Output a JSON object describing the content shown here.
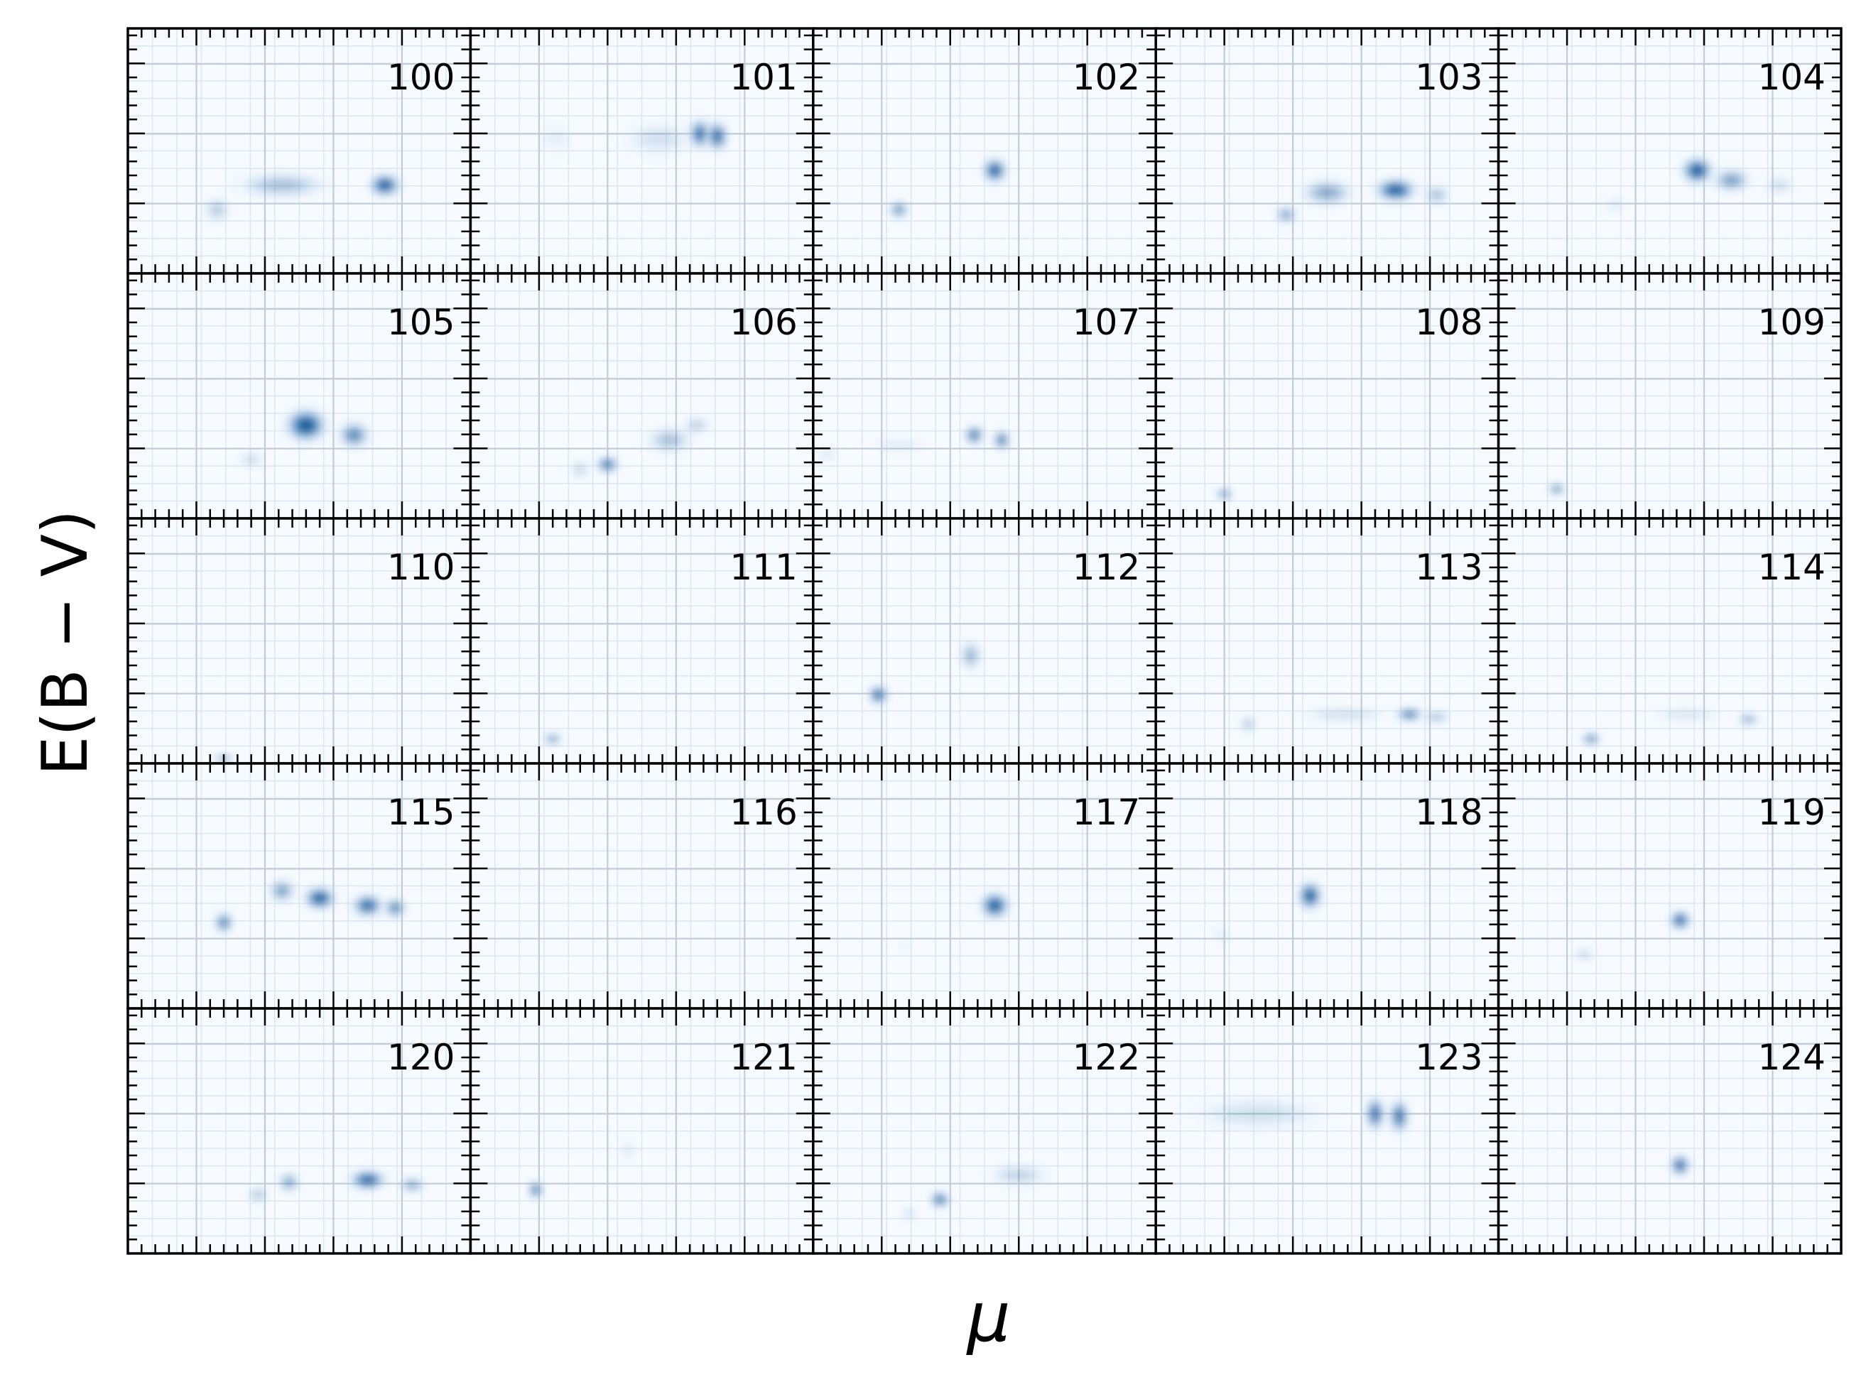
{
  "chart_data": {
    "type": "heatmap",
    "layout": {
      "rows": 5,
      "cols": 5
    },
    "xlabel": "μ",
    "ylabel": "E(B − V)",
    "tick_labels_shown": false,
    "grid": true,
    "colormap": "Blues",
    "colors": {
      "dark": "#08306b",
      "mid": "#2171b5",
      "light": "#c6dbef",
      "background": "#f7fbff"
    },
    "panels": [
      {
        "label": "100",
        "blobs": [
          [
            0.26,
            0.26,
            0.05,
            0.07,
            0.3
          ],
          [
            0.45,
            0.36,
            0.18,
            0.07,
            0.35
          ],
          [
            0.75,
            0.36,
            0.06,
            0.06,
            1.0
          ]
        ]
      },
      {
        "label": "101",
        "blobs": [
          [
            0.25,
            0.55,
            0.08,
            0.08,
            0.08
          ],
          [
            0.55,
            0.55,
            0.15,
            0.1,
            0.15
          ],
          [
            0.67,
            0.57,
            0.04,
            0.08,
            0.9
          ],
          [
            0.72,
            0.56,
            0.04,
            0.08,
            0.9
          ]
        ]
      },
      {
        "label": "102",
        "blobs": [
          [
            0.25,
            0.26,
            0.035,
            0.045,
            0.75
          ],
          [
            0.53,
            0.42,
            0.045,
            0.065,
            1.0
          ]
        ]
      },
      {
        "label": "103",
        "blobs": [
          [
            0.38,
            0.24,
            0.04,
            0.045,
            0.6
          ],
          [
            0.5,
            0.33,
            0.1,
            0.07,
            0.5
          ],
          [
            0.7,
            0.34,
            0.08,
            0.06,
            1.0
          ],
          [
            0.82,
            0.32,
            0.05,
            0.05,
            0.4
          ]
        ]
      },
      {
        "label": "104",
        "blobs": [
          [
            0.34,
            0.28,
            0.04,
            0.04,
            0.15
          ],
          [
            0.58,
            0.42,
            0.06,
            0.07,
            1.0
          ],
          [
            0.68,
            0.38,
            0.07,
            0.06,
            0.6
          ],
          [
            0.82,
            0.36,
            0.06,
            0.05,
            0.2
          ]
        ]
      },
      {
        "label": "105",
        "blobs": [
          [
            0.36,
            0.24,
            0.05,
            0.04,
            0.25
          ],
          [
            0.52,
            0.38,
            0.08,
            0.09,
            1.0
          ],
          [
            0.66,
            0.34,
            0.06,
            0.07,
            0.7
          ]
        ]
      },
      {
        "label": "106",
        "blobs": [
          [
            0.32,
            0.2,
            0.04,
            0.05,
            0.25
          ],
          [
            0.4,
            0.22,
            0.04,
            0.04,
            1.0
          ],
          [
            0.58,
            0.32,
            0.09,
            0.07,
            0.35
          ],
          [
            0.66,
            0.38,
            0.05,
            0.04,
            0.35
          ]
        ]
      },
      {
        "label": "107",
        "blobs": [
          [
            0.04,
            0.26,
            0.04,
            0.04,
            0.15
          ],
          [
            0.25,
            0.3,
            0.12,
            0.04,
            0.12
          ],
          [
            0.47,
            0.34,
            0.035,
            0.05,
            0.9
          ],
          [
            0.55,
            0.32,
            0.03,
            0.05,
            0.9
          ]
        ]
      },
      {
        "label": "108",
        "blobs": [
          [
            0.2,
            0.1,
            0.035,
            0.02,
            1.0
          ]
        ]
      },
      {
        "label": "109",
        "blobs": [
          [
            0.17,
            0.12,
            0.03,
            0.025,
            1.0
          ]
        ]
      },
      {
        "label": "110",
        "blobs": [
          [
            0.28,
            0.02,
            0.04,
            0.015,
            1.0
          ]
        ]
      },
      {
        "label": "111",
        "blobs": [
          [
            0.24,
            0.1,
            0.035,
            0.02,
            1.0
          ]
        ]
      },
      {
        "label": "112",
        "blobs": [
          [
            0.19,
            0.28,
            0.035,
            0.05,
            1.0
          ],
          [
            0.46,
            0.44,
            0.04,
            0.08,
            0.45
          ]
        ]
      },
      {
        "label": "113",
        "blobs": [
          [
            0.27,
            0.16,
            0.03,
            0.04,
            0.4
          ],
          [
            0.55,
            0.2,
            0.18,
            0.04,
            0.2
          ],
          [
            0.74,
            0.2,
            0.05,
            0.03,
            1.0
          ],
          [
            0.82,
            0.19,
            0.05,
            0.03,
            0.45
          ]
        ]
      },
      {
        "label": "114",
        "blobs": [
          [
            0.27,
            0.1,
            0.035,
            0.025,
            1.0
          ],
          [
            0.55,
            0.2,
            0.15,
            0.04,
            0.15
          ],
          [
            0.73,
            0.18,
            0.04,
            0.025,
            0.7
          ]
        ]
      },
      {
        "label": "115",
        "blobs": [
          [
            0.28,
            0.35,
            0.035,
            0.055,
            0.8
          ],
          [
            0.45,
            0.48,
            0.05,
            0.06,
            0.6
          ],
          [
            0.56,
            0.45,
            0.06,
            0.06,
            1.0
          ],
          [
            0.7,
            0.42,
            0.06,
            0.06,
            0.9
          ],
          [
            0.78,
            0.41,
            0.04,
            0.05,
            0.8
          ]
        ]
      },
      {
        "label": "116",
        "blobs": []
      },
      {
        "label": "117",
        "blobs": [
          [
            0.27,
            0.26,
            0.03,
            0.04,
            0.06
          ],
          [
            0.53,
            0.42,
            0.055,
            0.07,
            1.0
          ]
        ]
      },
      {
        "label": "118",
        "blobs": [
          [
            0.19,
            0.3,
            0.04,
            0.05,
            0.1
          ],
          [
            0.45,
            0.46,
            0.045,
            0.075,
            1.0
          ]
        ]
      },
      {
        "label": "119",
        "blobs": [
          [
            0.25,
            0.22,
            0.035,
            0.04,
            0.25
          ],
          [
            0.53,
            0.36,
            0.04,
            0.05,
            1.0
          ]
        ]
      },
      {
        "label": "120",
        "blobs": [
          [
            0.38,
            0.24,
            0.04,
            0.04,
            0.4
          ],
          [
            0.47,
            0.29,
            0.04,
            0.05,
            0.6
          ],
          [
            0.7,
            0.3,
            0.07,
            0.05,
            1.0
          ],
          [
            0.83,
            0.28,
            0.05,
            0.04,
            0.55
          ]
        ]
      },
      {
        "label": "121",
        "blobs": [
          [
            0.19,
            0.26,
            0.025,
            0.045,
            1.0
          ],
          [
            0.46,
            0.42,
            0.04,
            0.05,
            0.12
          ]
        ]
      },
      {
        "label": "122",
        "blobs": [
          [
            0.28,
            0.16,
            0.03,
            0.04,
            0.2
          ],
          [
            0.37,
            0.22,
            0.035,
            0.04,
            1.0
          ],
          [
            0.6,
            0.32,
            0.12,
            0.06,
            0.25
          ]
        ]
      },
      {
        "label": "123",
        "blobs": [
          [
            0.3,
            0.57,
            0.28,
            0.1,
            0.15
          ],
          [
            0.64,
            0.57,
            0.035,
            0.09,
            0.9
          ],
          [
            0.71,
            0.56,
            0.035,
            0.09,
            0.9
          ]
        ]
      },
      {
        "label": "124",
        "blobs": [
          [
            0.53,
            0.36,
            0.035,
            0.055,
            1.0
          ]
        ]
      }
    ]
  }
}
